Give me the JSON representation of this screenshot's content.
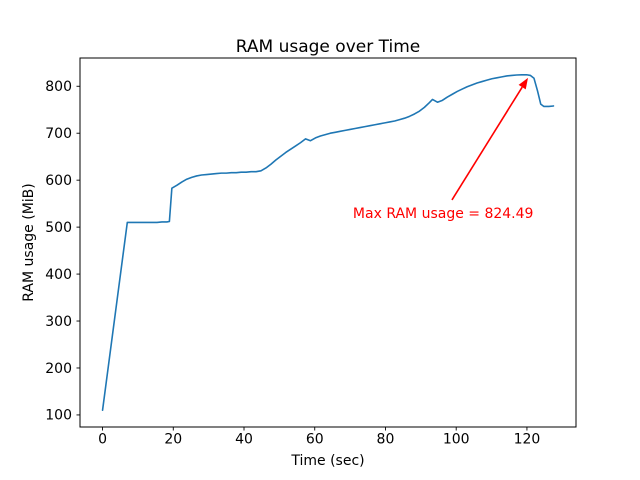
{
  "chart_data": {
    "type": "line",
    "title": "RAM usage over Time",
    "xlabel": "Time (sec)",
    "ylabel": "RAM usage (MiB)",
    "xlim": [
      -6.375,
      133.875
    ],
    "ylim": [
      74.3,
      860.2
    ],
    "x_ticks": [
      0,
      20,
      40,
      60,
      80,
      100,
      120
    ],
    "y_ticks": [
      100,
      200,
      300,
      400,
      500,
      600,
      700,
      800
    ],
    "grid": false,
    "legend": false,
    "line_color": "#1f77b4",
    "series": [
      {
        "name": "RAM usage",
        "x": [
          0,
          1.4,
          2.8,
          4.2,
          5.6,
          7.0,
          8.4,
          9.8,
          11.2,
          12.6,
          14.0,
          15.4,
          16.8,
          18.2,
          18.9,
          19.6,
          21.0,
          22.4,
          23.8,
          25.2,
          26.6,
          28.0,
          29.4,
          30.8,
          32.2,
          33.6,
          35.0,
          36.4,
          37.8,
          39.2,
          40.6,
          42.0,
          43.4,
          44.8,
          46.2,
          47.6,
          49.0,
          50.4,
          51.8,
          53.2,
          54.6,
          56.0,
          57.4,
          58.8,
          60.2,
          61.6,
          63.0,
          64.4,
          65.8,
          67.2,
          68.6,
          70.0,
          71.4,
          72.8,
          74.2,
          75.6,
          77.0,
          78.4,
          79.8,
          81.2,
          82.6,
          84.0,
          85.4,
          86.8,
          88.2,
          89.6,
          91.0,
          92.4,
          93.3,
          94.7,
          96.1,
          97.5,
          98.9,
          100.3,
          101.7,
          103.1,
          104.5,
          105.9,
          107.3,
          108.7,
          110.1,
          111.5,
          112.9,
          114.3,
          115.7,
          117.1,
          118.5,
          119.9,
          121.0,
          122.0,
          123.0,
          123.9,
          124.8,
          126.2,
          127.5
        ],
        "y": [
          110,
          190,
          270,
          350,
          430,
          510,
          510,
          510,
          510,
          510,
          510,
          510,
          511,
          511,
          512,
          583,
          589,
          596,
          602,
          606,
          609,
          611,
          612,
          613,
          614,
          615,
          615,
          616,
          616,
          617,
          617,
          618,
          618,
          620,
          626,
          634,
          643,
          651,
          659,
          666,
          673,
          680,
          688,
          684,
          690,
          694,
          697,
          700,
          702,
          704,
          706,
          708,
          710,
          712,
          714,
          716,
          718,
          720,
          722,
          724,
          726,
          729,
          732,
          736,
          741,
          747,
          755,
          765,
          772,
          766,
          770,
          777,
          783,
          789,
          794,
          799,
          803,
          807,
          810,
          813,
          816,
          818,
          820,
          822,
          823,
          824,
          824.4,
          824.49,
          823,
          817,
          790,
          762,
          757,
          757,
          758
        ]
      }
    ],
    "max_value": 824.49,
    "annotation": {
      "label": "Max RAM usage = 824.49",
      "color": "#ff0000",
      "xy": [
        120,
        824.49
      ],
      "arrow_tip": [
        120.3,
        818
      ],
      "arrow_tail": [
        98.8,
        558
      ],
      "text_xy": [
        70.8,
        519
      ]
    }
  }
}
